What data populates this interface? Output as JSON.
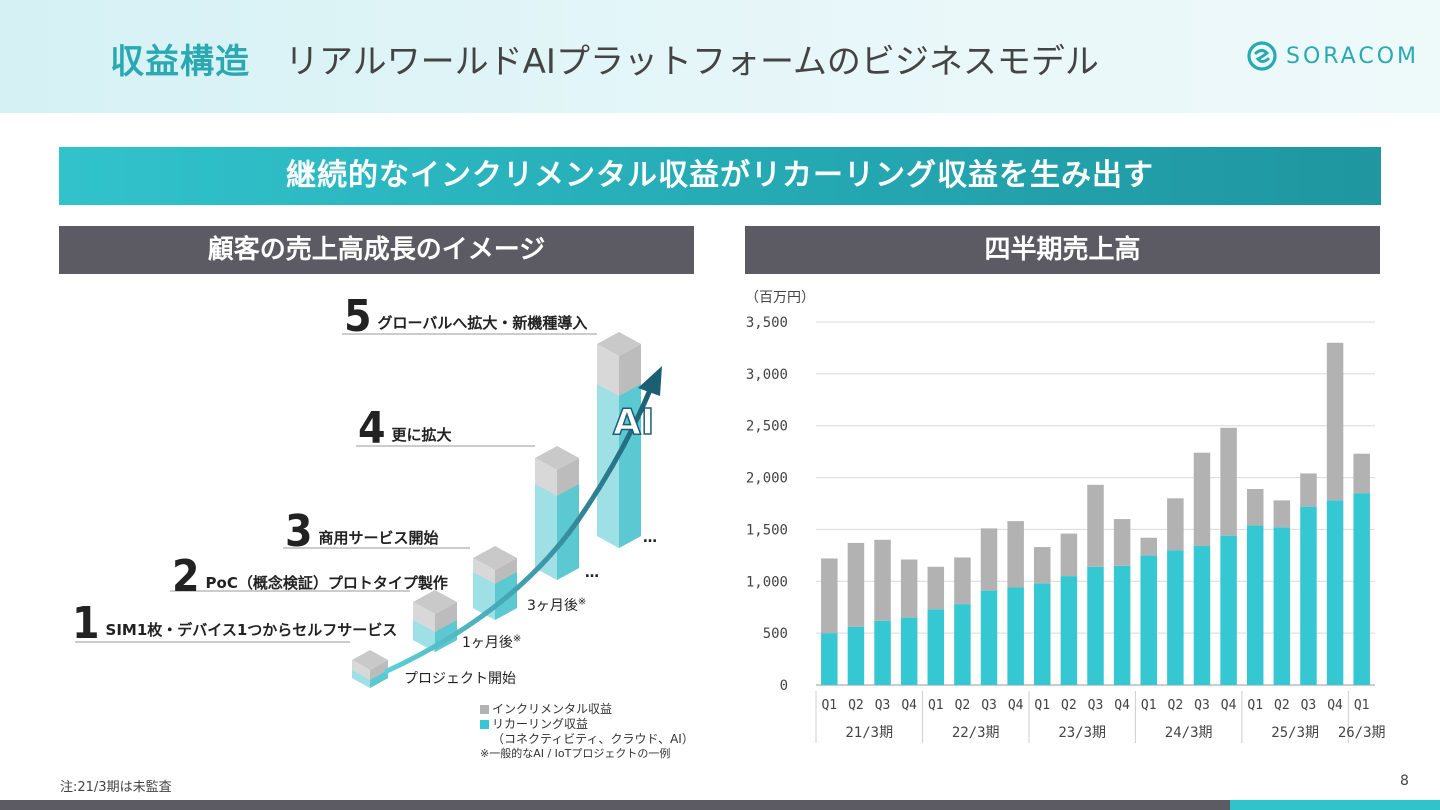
{
  "header": {
    "title_main": "収益構造",
    "title_sub": "リアルワールドAIプラットフォームのビジネスモデル",
    "logo": "SORACOM"
  },
  "banner": "継続的なインクリメンタル収益がリカーリング収益を生み出す",
  "left_panel": {
    "title": "顧客の売上高成長のイメージ",
    "stages": [
      {
        "num": "1",
        "label": "SIM1枚・デバイス1つからセルフサービス"
      },
      {
        "num": "2",
        "label": "PoC（概念検証）プロトタイプ製作"
      },
      {
        "num": "3",
        "label": "商用サービス開始"
      },
      {
        "num": "4",
        "label": "更に拡大"
      },
      {
        "num": "5",
        "label": "グローバルへ拡大・新機種導入"
      }
    ],
    "time_labels": {
      "start": "プロジェクト開始",
      "m1": "1ヶ月後",
      "m3": "3ヶ月後",
      "mark": "※",
      "ellipsis": "…"
    },
    "ai_label": "AI",
    "legend": {
      "incremental": "インクリメンタル収益",
      "recurring": "リカーリング収益",
      "recurring_note": "（コネクティビティ、クラウド、AI）",
      "note": "※一般的なAI / IoTプロジェクトの一例"
    }
  },
  "right_panel": {
    "title": "四半期売上高",
    "unit": "（百万円）"
  },
  "chart_data": {
    "type": "bar",
    "stacked": true,
    "quarters": [
      "Q1",
      "Q2",
      "Q3",
      "Q4",
      "Q1",
      "Q2",
      "Q3",
      "Q4",
      "Q1",
      "Q2",
      "Q3",
      "Q4",
      "Q1",
      "Q2",
      "Q3",
      "Q4",
      "Q1",
      "Q2",
      "Q3",
      "Q4",
      "Q1"
    ],
    "periods": [
      {
        "label": "21/3期",
        "count": 4
      },
      {
        "label": "22/3期",
        "count": 4
      },
      {
        "label": "23/3期",
        "count": 4
      },
      {
        "label": "24/3期",
        "count": 4
      },
      {
        "label": "25/3期",
        "count": 4
      },
      {
        "label": "26/3期",
        "count": 1
      }
    ],
    "series": [
      {
        "name": "リカーリング収益",
        "color": "#35c8d3",
        "values": [
          500,
          560,
          620,
          650,
          730,
          780,
          910,
          940,
          980,
          1050,
          1140,
          1150,
          1250,
          1300,
          1340,
          1440,
          1540,
          1520,
          1720,
          1780,
          1850
        ]
      },
      {
        "name": "インクリメンタル収益",
        "color": "#b2b2b2",
        "values": [
          720,
          810,
          780,
          560,
          410,
          450,
          600,
          640,
          350,
          410,
          790,
          450,
          170,
          500,
          900,
          1040,
          350,
          260,
          320,
          1520,
          380
        ]
      }
    ],
    "yticks": [
      "0",
      "500",
      "1,000",
      "1,500",
      "2,000",
      "2,500",
      "3,000",
      "3,500"
    ],
    "ylim": [
      0,
      3500
    ],
    "grid": true
  },
  "footer": {
    "note": "注:21/3期は未監査",
    "page": "8"
  }
}
